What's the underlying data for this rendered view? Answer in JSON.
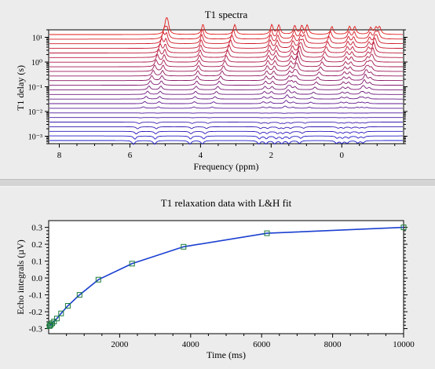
{
  "charts": {
    "top": {
      "title": "T1 spectra",
      "xlabel": "Frequency (ppm)",
      "ylabel": "T1 delay (s)"
    },
    "bottom": {
      "title": "T1 relaxation data with L&H fit",
      "xlabel": "Time (ms)",
      "ylabel": "Echo integrals (µV)"
    }
  },
  "chart_data": [
    {
      "type": "line",
      "title": "T1 spectra",
      "xlabel": "Frequency (ppm)",
      "ylabel": "T1 delay (s)",
      "x_reversed": true,
      "xlim": [
        8.3,
        -1.75
      ],
      "x_ticks": [
        8,
        6,
        4,
        2,
        0
      ],
      "y_scale": "log",
      "ylim": [
        0.0005,
        20
      ],
      "y_ticks": [
        {
          "value": 0.001,
          "label": "10⁻³"
        },
        {
          "value": 0.01,
          "label": "10⁻²"
        },
        {
          "value": 0.1,
          "label": "10⁻¹"
        },
        {
          "value": 1,
          "label": "10⁰"
        },
        {
          "value": 10,
          "label": "10¹"
        }
      ],
      "trace_count": 24,
      "trace_color_start": "#1a1acc",
      "trace_color_end": "#e01a1a",
      "peaks_ppm": [
        5.9,
        5.3,
        4.3,
        3.95,
        2.35,
        2.15,
        1.9,
        1.7,
        1.5,
        1.2,
        0.15,
        0.0,
        -0.15,
        -0.45,
        -0.6
      ]
    },
    {
      "type": "line",
      "title": "T1 relaxation data with L&H fit",
      "xlabel": "Time (ms)",
      "ylabel": "Echo integrals (µV)",
      "xlim": [
        0,
        10000
      ],
      "ylim": [
        -0.33,
        0.34
      ],
      "x_ticks": [
        2000,
        4000,
        6000,
        8000,
        10000
      ],
      "y_ticks": [
        -0.3,
        -0.2,
        -0.1,
        0.0,
        0.1,
        0.2,
        0.3
      ],
      "grid": false,
      "series": [
        {
          "marker": "square",
          "color": "#1a3fd0",
          "marker_color": "#1a7a3a",
          "x": [
            25,
            40,
            65,
            100,
            150,
            230,
            350,
            540,
            870,
            1400,
            2350,
            3800,
            6150,
            10000
          ],
          "values": [
            -0.285,
            -0.28,
            -0.275,
            -0.268,
            -0.258,
            -0.24,
            -0.21,
            -0.165,
            -0.1,
            -0.01,
            0.085,
            0.185,
            0.265,
            0.3
          ]
        }
      ]
    }
  ]
}
